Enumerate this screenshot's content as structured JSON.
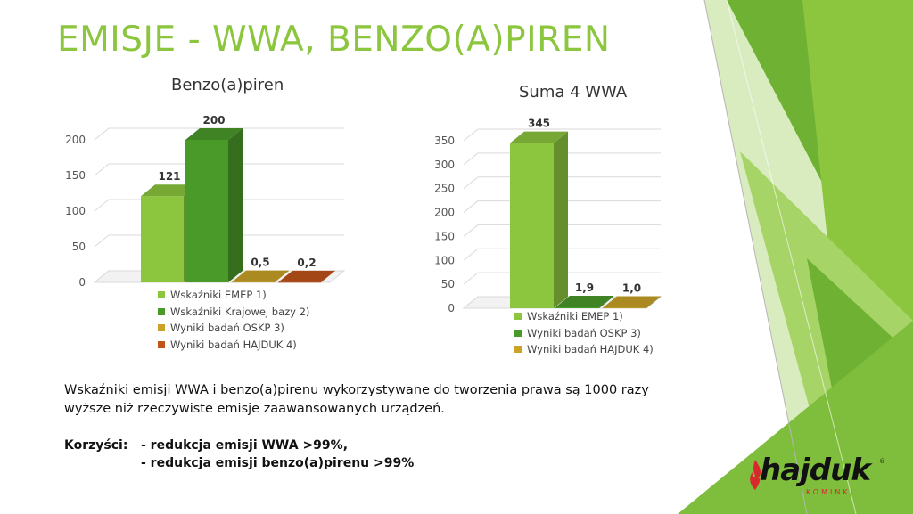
{
  "slide": {
    "title": "EMISJE - WWA, BENZO(A)PIREN",
    "paragraph": [
      "Wskaźniki emisji WWA i benzo(a)pirenu wykorzystywane do tworzenia prawa są 1000 razy",
      "wyższe niż rzeczywiste emisje zaawansowanych urządzeń."
    ],
    "benefits": {
      "label": "Korzyści:",
      "items": [
        "- redukcja emisji WWA >99%,",
        "- redukcja emisji benzo(a)pirenu >99%"
      ]
    },
    "logo": {
      "text": "hajduk",
      "sub": "KOMINKI",
      "reg": "®"
    }
  },
  "colors": {
    "title": "#8cc63f",
    "light_green": "#8cc63f",
    "dark_green": "#4a9a2a",
    "gold": "#c9a227",
    "orange": "#c0541a"
  },
  "chart_data": [
    {
      "type": "bar",
      "title": "Benzo(a)piren",
      "categories": [
        "Wskaźniki EMEP 1)",
        "Wskaźniki Krajowej bazy 2)",
        "Wyniki badań OSKP 3)",
        "Wyniki badań HAJDUK 4)"
      ],
      "values": [
        121,
        200,
        0.5,
        0.2
      ],
      "data_labels": [
        "121",
        "200",
        "0,5",
        "0,2"
      ],
      "colors": [
        "#8cc63f",
        "#4a9a2a",
        "#c9a227",
        "#c0541a"
      ],
      "yticks": [
        "0",
        "50",
        "100",
        "150",
        "200"
      ],
      "ylim": [
        0,
        200
      ],
      "grid": true,
      "legend": "bottom",
      "style": "3d"
    },
    {
      "type": "bar",
      "title": "Suma 4 WWA",
      "categories": [
        "Wskaźniki EMEP 1)",
        "Wyniki badań OSKP 3)",
        "Wyniki badań HAJDUK 4)"
      ],
      "values": [
        345,
        1.9,
        1.0
      ],
      "data_labels": [
        "345",
        "1,9",
        "1,0"
      ],
      "colors": [
        "#8cc63f",
        "#4a9a2a",
        "#c9a227"
      ],
      "yticks": [
        "0",
        "50",
        "100",
        "150",
        "200",
        "250",
        "300",
        "350"
      ],
      "ylim": [
        0,
        350
      ],
      "grid": true,
      "legend": "bottom",
      "style": "3d"
    }
  ]
}
